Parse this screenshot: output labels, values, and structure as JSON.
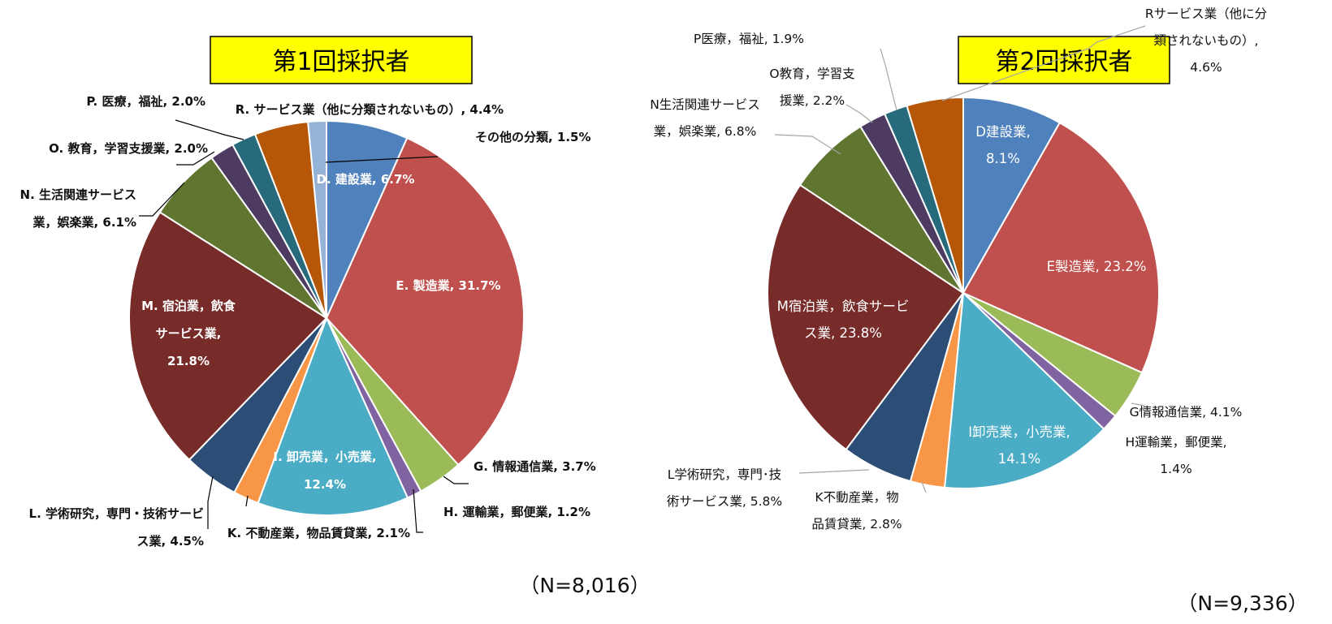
{
  "chart_data": [
    {
      "type": "pie",
      "title": "第1回採択者",
      "n_label": "（N=8,016）",
      "start_angle_deg": 0,
      "direction": "clockwise",
      "slices": [
        {
          "label": "D. 建設業",
          "value": 6.7,
          "color": "#4f81bd",
          "text": "D. 建設業, 6.7%"
        },
        {
          "label": "E. 製造業",
          "value": 31.7,
          "color": "#c0504d",
          "text": "E. 製造業, 31.7%"
        },
        {
          "label": "G. 情報通信業",
          "value": 3.7,
          "color": "#9bbb59",
          "text": "G. 情報通信業, 3.7%"
        },
        {
          "label": "H. 運輸業，郵便業",
          "value": 1.2,
          "color": "#8064a2",
          "text": "H. 運輸業，郵便業, 1.2%"
        },
        {
          "label": "I. 卸売業，小売業",
          "value": 12.4,
          "color": "#4bacc6",
          "text": [
            "I. 卸売業，小売業,",
            "12.4%"
          ]
        },
        {
          "label": "K. 不動産業，物品賃貸業",
          "value": 2.1,
          "color": "#f79646",
          "text": "K. 不動産業，物品賃貸業, 2.1%"
        },
        {
          "label": "L. 学術研究，専門・技術サービス業",
          "value": 4.5,
          "color": "#2c4d75",
          "text": [
            "L. 学術研究，専門・技術サービ",
            "ス業, 4.5%"
          ]
        },
        {
          "label": "M. 宿泊業，飲食サービス業",
          "value": 21.8,
          "color": "#772c2a",
          "text": [
            "M. 宿泊業，飲食",
            "サービス業,",
            "21.8%"
          ]
        },
        {
          "label": "N. 生活関連サービス業，娯楽業",
          "value": 6.1,
          "color": "#5f7530",
          "text": [
            "N. 生活関連サービス",
            "業，娯楽業, 6.1%"
          ]
        },
        {
          "label": "O. 教育，学習支援業",
          "value": 2.0,
          "color": "#4d3b62",
          "text": "O. 教育，学習支援業, 2.0%"
        },
        {
          "label": "P. 医療，福祉",
          "value": 2.0,
          "color": "#276a7c",
          "text": "P. 医療，福祉, 2.0%"
        },
        {
          "label": "R. サービス業（他に分類されないもの）",
          "value": 4.4,
          "color": "#b65708",
          "text": "R. サービス業（他に分類されないもの）, 4.4%"
        },
        {
          "label": "その他の分類",
          "value": 1.5,
          "color": "#95b3d7",
          "text": "その他の分類, 1.5%"
        }
      ]
    },
    {
      "type": "pie",
      "title": "第2回採択者",
      "n_label": "（N=9,336）",
      "start_angle_deg": 0,
      "direction": "clockwise",
      "slices": [
        {
          "label": "D建設業",
          "value": 8.1,
          "color": "#4f81bd",
          "text": [
            "D建設業,",
            "8.1%"
          ]
        },
        {
          "label": "E製造業",
          "value": 23.2,
          "color": "#c0504d",
          "text": "E製造業, 23.2%"
        },
        {
          "label": "G情報通信業",
          "value": 4.1,
          "color": "#9bbb59",
          "text": "G情報通信業, 4.1%"
        },
        {
          "label": "H運輸業，郵便業",
          "value": 1.4,
          "color": "#8064a2",
          "text": [
            "H運輸業，郵便業,",
            "1.4%"
          ]
        },
        {
          "label": "I卸売業，小売業",
          "value": 14.1,
          "color": "#4bacc6",
          "text": [
            "I卸売業，小売業,",
            "14.1%"
          ]
        },
        {
          "label": "K不動産業，物品賃貸業",
          "value": 2.8,
          "color": "#f79646",
          "text": [
            "K不動産業，物",
            "品賃貸業, 2.8%"
          ]
        },
        {
          "label": "L学術研究，専門･技術サービス業",
          "value": 5.8,
          "color": "#2c4d75",
          "text": [
            "L学術研究，専門･技",
            "術サービス業, 5.8%"
          ]
        },
        {
          "label": "M宿泊業，飲食サービス業",
          "value": 23.8,
          "color": "#772c2a",
          "text": [
            "M宿泊業，飲食サービ",
            "ス業, 23.8%"
          ]
        },
        {
          "label": "N生活関連サービス業，娯楽業",
          "value": 6.8,
          "color": "#5f7530",
          "text": [
            "N生活関連サービス",
            "業，娯楽業, 6.8%"
          ]
        },
        {
          "label": "O教育，学習支援業",
          "value": 2.2,
          "color": "#4d3b62",
          "text": [
            "O教育，学習支",
            "援業, 2.2%"
          ]
        },
        {
          "label": "P医療，福祉",
          "value": 1.9,
          "color": "#276a7c",
          "text": "P医療，福祉, 1.9%"
        },
        {
          "label": "Rサービス業（他に分類されないもの）",
          "value": 4.6,
          "color": "#b65708",
          "text": [
            "Rサービス業（他に分",
            "類されないもの）,",
            "4.6%"
          ]
        }
      ]
    }
  ]
}
